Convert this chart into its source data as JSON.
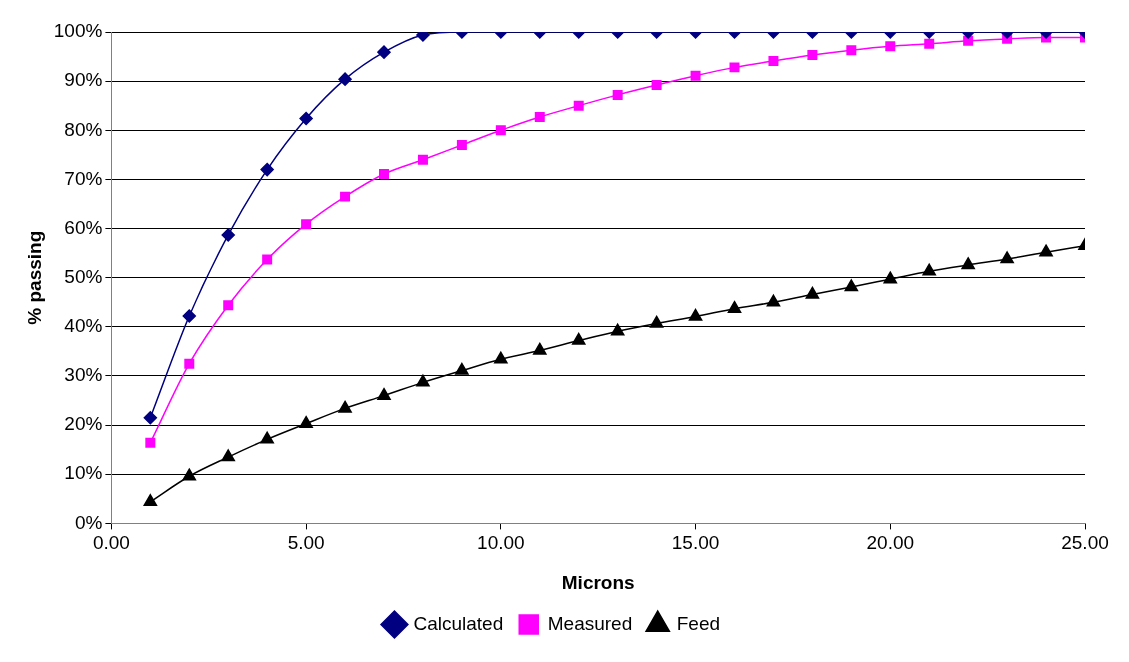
{
  "chart_data": {
    "type": "line",
    "xlabel": "Microns",
    "ylabel": "% passing",
    "x": [
      1,
      2,
      3,
      4,
      5,
      6,
      7,
      8,
      9,
      10,
      11,
      12,
      13,
      14,
      15,
      16,
      17,
      18,
      19,
      20,
      21,
      22,
      23,
      24,
      25
    ],
    "series": [
      {
        "name": "Calculated",
        "color": "#000080",
        "marker": "diamond",
        "values": [
          21.5,
          42.2,
          58.7,
          72.0,
          82.4,
          90.4,
          95.9,
          99.4,
          100,
          100,
          100,
          100,
          100,
          100,
          100,
          100,
          100,
          100,
          100,
          100,
          100,
          100,
          100,
          100,
          100
        ]
      },
      {
        "name": "Measured",
        "color": "#ff00ff",
        "marker": "square",
        "values": [
          16.4,
          32.5,
          44.4,
          53.7,
          60.9,
          66.5,
          71.1,
          74.0,
          77.0,
          80.0,
          82.7,
          85.0,
          87.2,
          89.2,
          91.1,
          92.8,
          94.1,
          95.3,
          96.3,
          97.1,
          97.6,
          98.2,
          98.6,
          98.9,
          98.9
        ]
      },
      {
        "name": "Feed",
        "color": "#000000",
        "marker": "triangle",
        "values": [
          4.4,
          9.6,
          13.5,
          17.1,
          20.3,
          23.4,
          26.0,
          28.7,
          31.1,
          33.4,
          35.2,
          37.2,
          39.1,
          40.7,
          42.1,
          43.7,
          45.0,
          46.6,
          48.1,
          49.7,
          51.3,
          52.6,
          53.8,
          55.2,
          56.5
        ]
      }
    ],
    "xlim": [
      0,
      25
    ],
    "xticks": [
      {
        "value": 0,
        "label": "0.00"
      },
      {
        "value": 5,
        "label": "5.00"
      },
      {
        "value": 10,
        "label": "10.00"
      },
      {
        "value": 15,
        "label": "15.00"
      },
      {
        "value": 20,
        "label": "20.00"
      },
      {
        "value": 25,
        "label": "25.00"
      }
    ],
    "ylim": [
      0,
      100
    ],
    "yticks": [
      {
        "value": 0,
        "label": "0%"
      },
      {
        "value": 10,
        "label": "10%"
      },
      {
        "value": 20,
        "label": "20%"
      },
      {
        "value": 30,
        "label": "30%"
      },
      {
        "value": 40,
        "label": "40%"
      },
      {
        "value": 50,
        "label": "50%"
      },
      {
        "value": 60,
        "label": "60%"
      },
      {
        "value": 70,
        "label": "70%"
      },
      {
        "value": 80,
        "label": "80%"
      },
      {
        "value": 90,
        "label": "90%"
      },
      {
        "value": 100,
        "label": "100%"
      }
    ],
    "grid": "y",
    "legend": "bottom",
    "line_style": "solid"
  }
}
